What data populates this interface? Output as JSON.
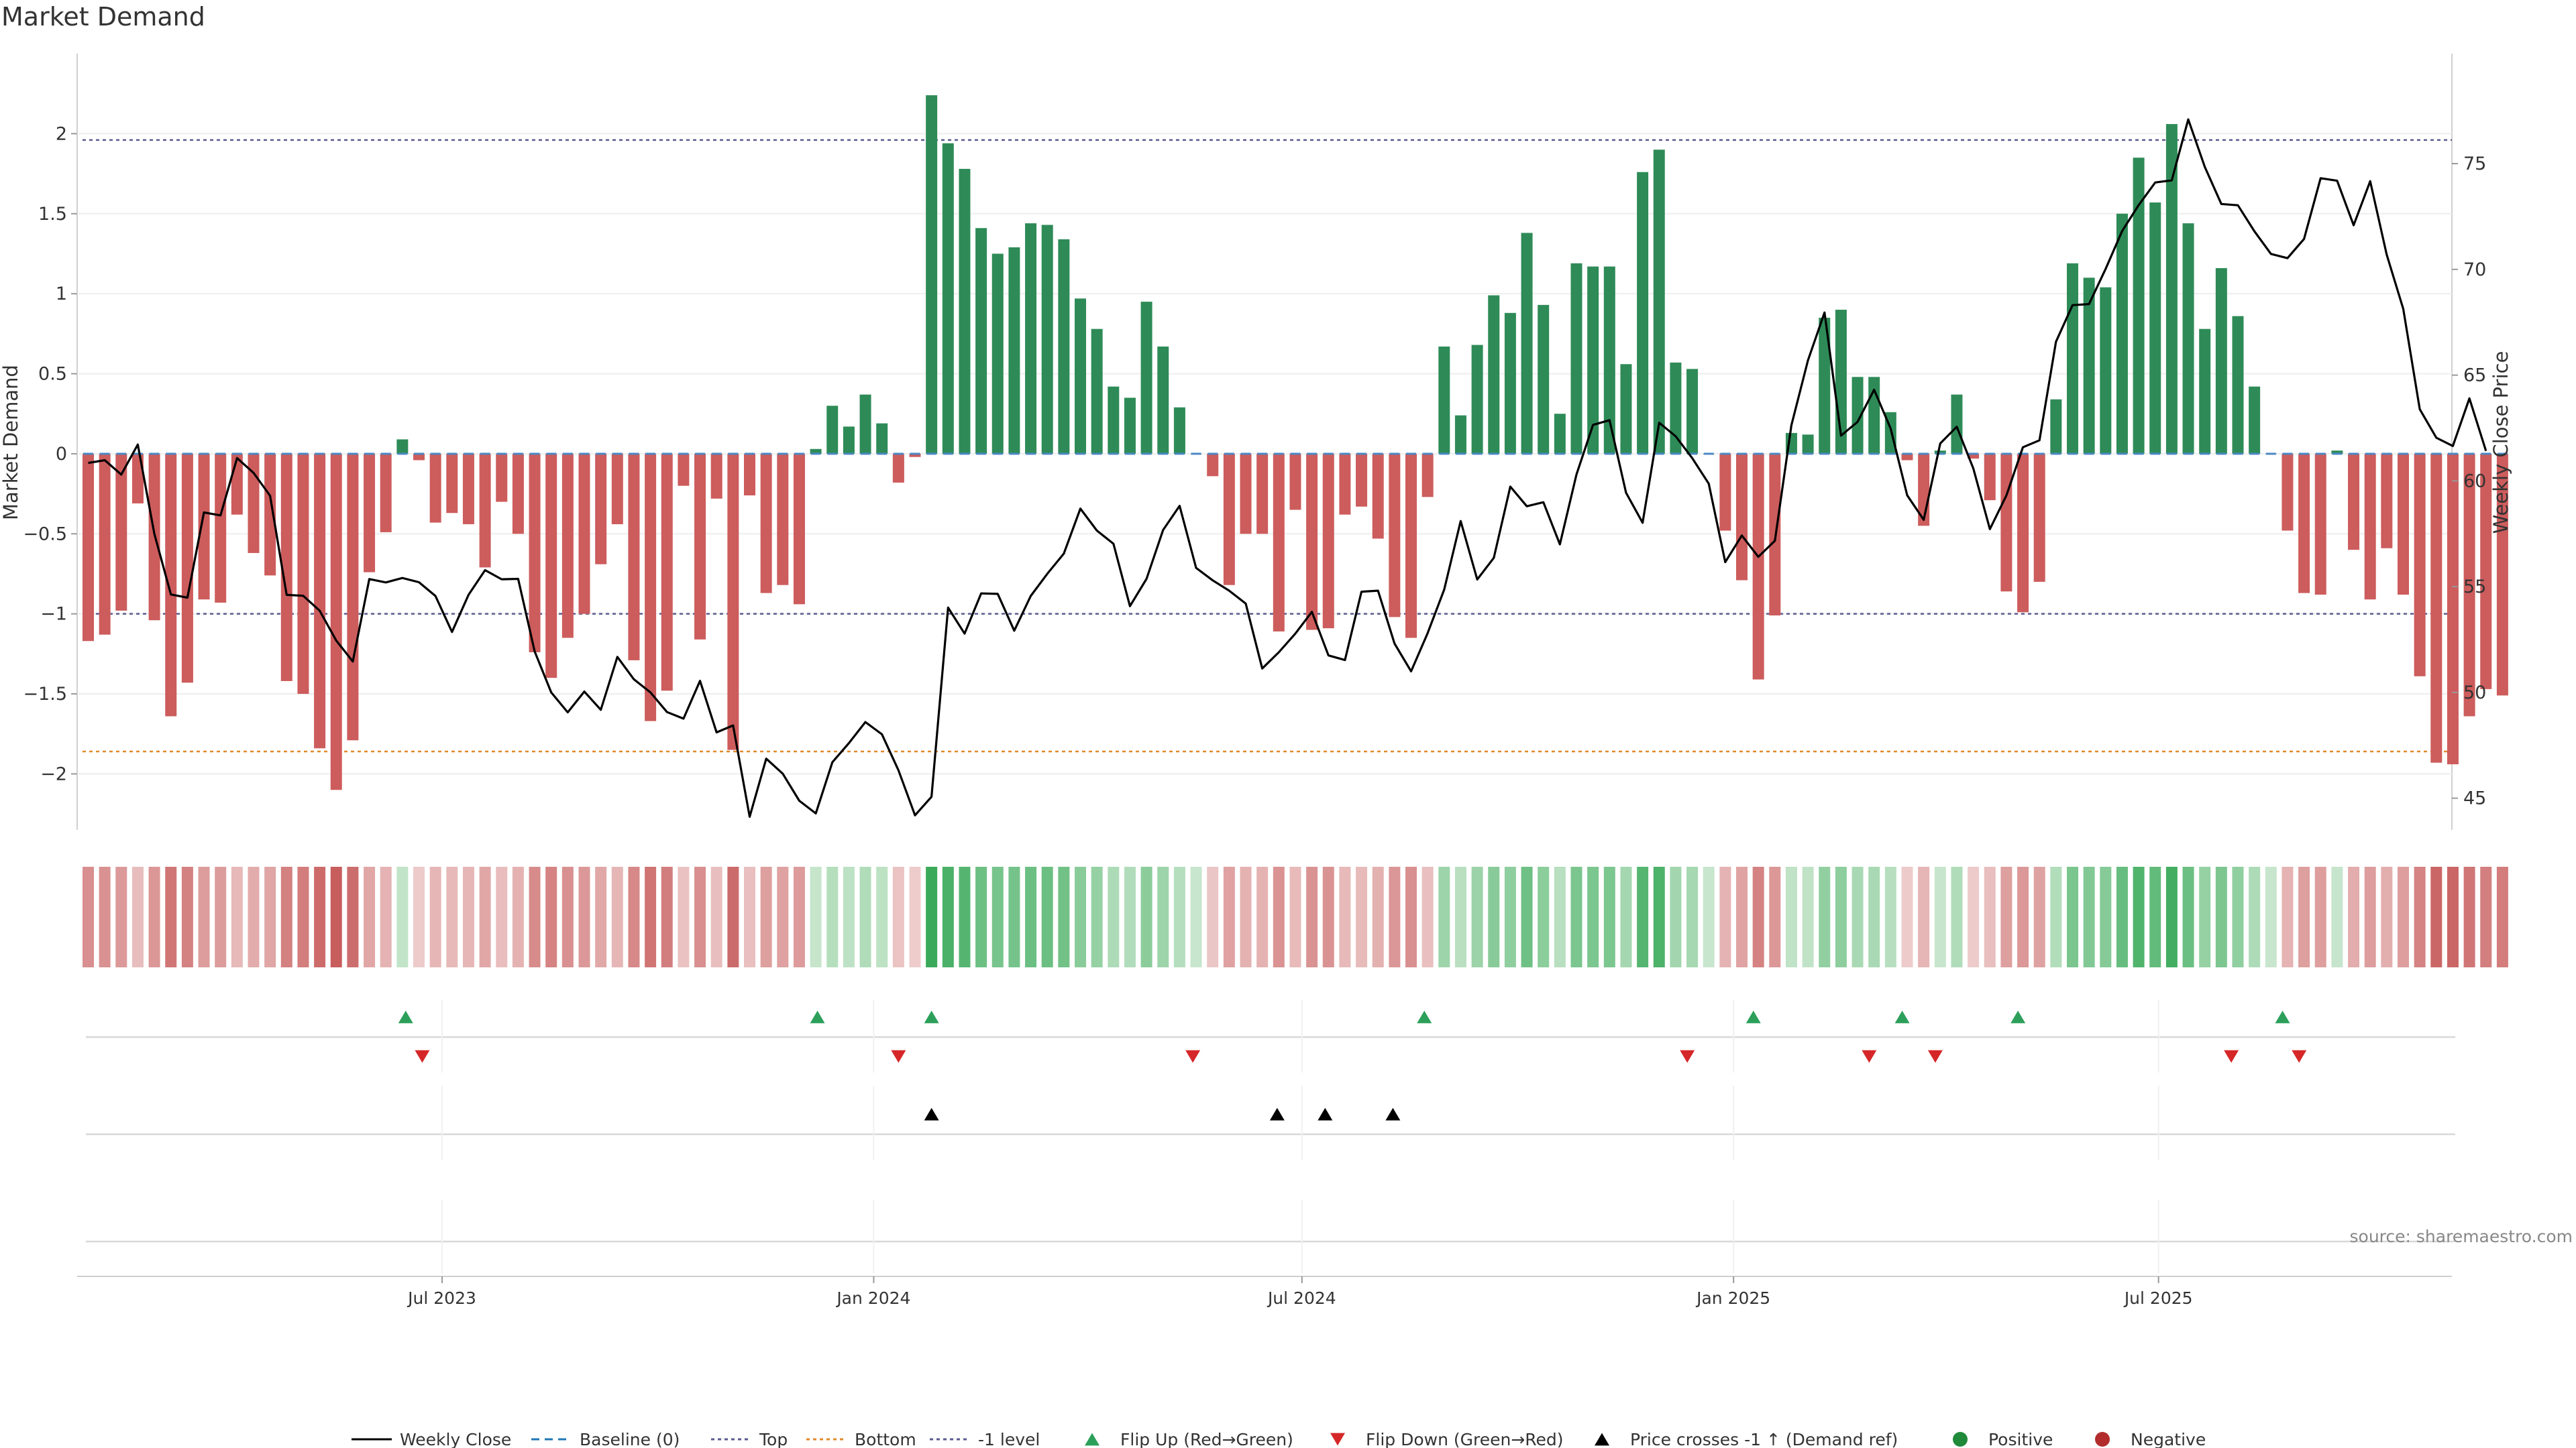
{
  "chart_data": {
    "type": "bar",
    "title": "Market Demand",
    "ylabel": "Market Demand",
    "y2label": "Weekly Close Price",
    "ylim": [
      -2.35,
      2.5
    ],
    "y2lim": [
      43.5,
      80.2
    ],
    "yticks": [
      -2,
      -1.5,
      -1,
      -0.5,
      0,
      0.5,
      1,
      1.5,
      2
    ],
    "ytick_labels": [
      "−2",
      "−1.5",
      "−1",
      "−0.5",
      "0",
      "0.5",
      "1",
      "1.5",
      "2"
    ],
    "y2ticks": [
      45,
      50,
      55,
      60,
      65,
      70,
      75
    ],
    "ytick2_labels": [
      "45",
      "50",
      "55",
      "60",
      "65",
      "70",
      "75"
    ],
    "xtick_labels": [
      "Jul 2023",
      "Jan 2024",
      "Jul 2024",
      "Jan 2025",
      "Jul 2025"
    ],
    "xtick_weeks": [
      21.4,
      47.5,
      73.4,
      99.5,
      125.2
    ],
    "reference_lines": {
      "top": 1.96,
      "bottom": -1.86,
      "minus_one": -1.0,
      "baseline": 0
    },
    "demand": [
      -1.17,
      -1.13,
      -0.98,
      -0.31,
      -1.04,
      -1.64,
      -1.43,
      -0.91,
      -0.93,
      -0.38,
      -0.62,
      -0.76,
      -1.42,
      -1.5,
      -1.84,
      -2.1,
      -1.79,
      -0.74,
      -0.49,
      0.09,
      -0.04,
      -0.43,
      -0.37,
      -0.44,
      -0.71,
      -0.3,
      -0.5,
      -1.24,
      -1.4,
      -1.15,
      -1.0,
      -0.69,
      -0.44,
      -1.29,
      -1.67,
      -1.48,
      -0.2,
      -1.16,
      -0.28,
      -1.85,
      -0.26,
      -0.87,
      -0.82,
      -0.94,
      0.03,
      0.3,
      0.17,
      0.37,
      0.19,
      -0.18,
      -0.02,
      2.24,
      1.94,
      1.78,
      1.41,
      1.25,
      1.29,
      1.44,
      1.43,
      1.34,
      0.97,
      0.78,
      0.42,
      0.35,
      0.95,
      0.67,
      0.29,
      0,
      -0.14,
      -0.82,
      -0.5,
      -0.5,
      -1.11,
      -0.35,
      -1.1,
      -1.09,
      -0.38,
      -0.33,
      -0.53,
      -1.02,
      -1.15,
      -0.27,
      0.67,
      0.24,
      0.68,
      0.99,
      0.88,
      1.38,
      0.93,
      0.25,
      1.19,
      1.17,
      1.17,
      0.56,
      1.76,
      1.9,
      0.57,
      0.53,
      0,
      -0.48,
      -0.79,
      -1.41,
      -1.01,
      0.13,
      0.12,
      0.85,
      0.9,
      0.48,
      0.48,
      0.26,
      -0.04,
      -0.45,
      0.02,
      0.37,
      -0.03,
      -0.29,
      -0.86,
      -0.99,
      -0.8,
      0.34,
      1.19,
      1.1,
      1.04,
      1.5,
      1.85,
      1.57,
      2.06,
      1.44,
      0.78,
      1.16,
      0.86,
      0.42,
      0,
      -0.48,
      -0.87,
      -0.88,
      0.02,
      -0.6,
      -0.91,
      -0.59,
      -0.88,
      -1.39,
      -1.93,
      -1.94,
      -1.64,
      -1.47,
      -1.51
    ],
    "weekly_close": [
      60.85,
      60.98,
      60.3,
      61.72,
      57.5,
      54.63,
      54.48,
      58.51,
      58.37,
      61.08,
      60.38,
      59.3,
      54.61,
      54.57,
      53.86,
      52.45,
      51.46,
      55.36,
      55.2,
      55.41,
      55.21,
      54.56,
      52.86,
      54.61,
      55.78,
      55.35,
      55.37,
      51.94,
      50.0,
      49.06,
      50.04,
      49.18,
      51.68,
      50.62,
      50.0,
      49.07,
      48.76,
      50.55,
      48.11,
      48.44,
      44.12,
      46.87,
      46.16,
      44.88,
      44.28,
      46.7,
      47.6,
      48.6,
      48.02,
      46.32,
      44.19,
      45.07,
      54.01,
      52.78,
      54.68,
      54.66,
      52.92,
      54.56,
      55.61,
      56.56,
      58.69,
      57.65,
      57.03,
      54.08,
      55.37,
      57.68,
      58.82,
      55.89,
      55.3,
      54.81,
      54.2,
      51.13,
      51.9,
      52.78,
      53.81,
      51.75,
      51.53,
      54.76,
      54.81,
      52.31,
      51.0,
      52.8,
      54.86,
      58.1,
      55.34,
      56.36,
      59.73,
      58.8,
      58.99,
      57.0,
      60.3,
      62.65,
      62.87,
      59.44,
      58.02,
      62.75,
      62.11,
      61.08,
      59.87,
      56.16,
      57.42,
      56.41,
      57.17,
      62.63,
      65.7,
      67.96,
      62.14,
      62.79,
      64.31,
      62.48,
      59.32,
      58.16,
      61.77,
      62.56,
      60.59,
      57.72,
      59.31,
      61.59,
      61.92,
      66.58,
      68.31,
      68.36,
      70.02,
      71.81,
      73.04,
      74.11,
      74.21,
      77.09,
      74.84,
      73.09,
      73.03,
      71.8,
      70.73,
      70.53,
      71.44,
      74.31,
      74.19,
      72.09,
      74.17,
      70.7,
      68.13,
      63.39,
      62.04,
      61.65,
      63.9,
      61.42
    ],
    "flip_up_weeks": [
      19.2,
      44.1,
      51.0,
      80.8,
      100.7,
      109.7,
      116.7,
      132.7
    ],
    "flip_down_weeks": [
      20.2,
      49.0,
      66.8,
      96.7,
      107.7,
      111.7,
      129.6,
      133.7
    ],
    "price_cross_weeks": [
      51.0,
      71.9,
      74.8,
      78.9
    ],
    "source": "source: sharemaestro.com",
    "legend": [
      {
        "label": "Weekly Close",
        "kind": "line",
        "color": "#000000"
      },
      {
        "label": "Baseline (0)",
        "kind": "dash",
        "color": "#1f77b4"
      },
      {
        "label": "Top",
        "kind": "dot",
        "color": "#5b5b8f"
      },
      {
        "label": "Bottom",
        "kind": "dot",
        "color": "#e08a2c"
      },
      {
        "label": "-1 level",
        "kind": "dot",
        "color": "#5b5b8f"
      },
      {
        "label": "Flip Up (Red→Green)",
        "kind": "tri-up",
        "color": "#2ca05a"
      },
      {
        "label": "Flip Down (Green→Red)",
        "kind": "tri-down",
        "color": "#d62728"
      },
      {
        "label": "Price crosses -1 ↑ (Demand ref)",
        "kind": "tri-up",
        "color": "#000000"
      },
      {
        "label": "Positive",
        "kind": "circle",
        "color": "#1f8a3a"
      },
      {
        "label": "Negative",
        "kind": "circle",
        "color": "#b22c2c"
      }
    ],
    "colors": {
      "pos_bar": "#2e8b57",
      "neg_bar": "#cd5c5c",
      "line": "#000000",
      "grid": "#eeeeee"
    }
  }
}
